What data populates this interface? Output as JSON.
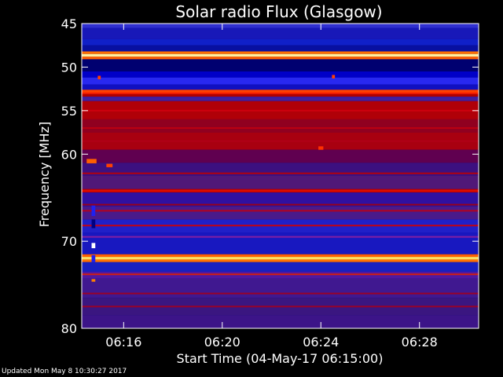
{
  "chart_data": {
    "type": "heatmap",
    "title": "Solar radio Flux (Glasgow)",
    "xlabel": "Start Time (04-May-17 06:15:00)",
    "ylabel": "Frequency [MHz]",
    "x_unit": "minutes after 06:15",
    "xlim": [
      -0.7,
      15.4
    ],
    "ylim": [
      80,
      45
    ],
    "x_ticks": [
      {
        "value": 1,
        "label": "06:16"
      },
      {
        "value": 5,
        "label": "06:20"
      },
      {
        "value": 9,
        "label": "06:24"
      },
      {
        "value": 13,
        "label": "06:28"
      }
    ],
    "y_ticks": [
      {
        "value": 45,
        "label": "45"
      },
      {
        "value": 50,
        "label": "50"
      },
      {
        "value": 55,
        "label": "55"
      },
      {
        "value": 60,
        "label": "60"
      },
      {
        "value": 70,
        "label": "70"
      },
      {
        "value": 80,
        "label": "80"
      }
    ],
    "colors": {
      "background": "#000000",
      "low": "#000078",
      "blue": "#2020e0",
      "purple": "#5018a0",
      "red": "#b00000",
      "orange": "#ff6000",
      "yellow": "#ffff60",
      "white": "#ffffff"
    },
    "bands": [
      {
        "f0": 45.0,
        "f1": 45.5,
        "color": "#3030d0"
      },
      {
        "f0": 45.5,
        "f1": 46.8,
        "color": "#1818b8"
      },
      {
        "f0": 46.8,
        "f1": 47.5,
        "color": "#1020c8"
      },
      {
        "f0": 47.5,
        "f1": 48.2,
        "color": "#0810a0"
      },
      {
        "f0": 48.2,
        "f1": 48.5,
        "color": "#ff7000"
      },
      {
        "f0": 48.5,
        "f1": 48.8,
        "color": "#fff0a0"
      },
      {
        "f0": 48.8,
        "f1": 49.1,
        "color": "#ff6000"
      },
      {
        "f0": 49.1,
        "f1": 50.5,
        "color": "#000070"
      },
      {
        "f0": 50.5,
        "f1": 51.2,
        "color": "#0000c8"
      },
      {
        "f0": 51.2,
        "f1": 52.0,
        "color": "#2828f0"
      },
      {
        "f0": 52.0,
        "f1": 52.6,
        "color": "#1010c0"
      },
      {
        "f0": 52.6,
        "f1": 53.0,
        "color": "#ff4000"
      },
      {
        "f0": 53.0,
        "f1": 53.4,
        "color": "#b00000"
      },
      {
        "f0": 53.4,
        "f1": 53.9,
        "color": "#4020a0"
      },
      {
        "f0": 53.9,
        "f1": 56.0,
        "color": "#b00008"
      },
      {
        "f0": 56.0,
        "f1": 57.5,
        "color": "#900020"
      },
      {
        "f0": 57.5,
        "f1": 59.5,
        "color": "#a80010"
      },
      {
        "f0": 59.5,
        "f1": 61.0,
        "color": "#600050"
      },
      {
        "f0": 61.0,
        "f1": 62.5,
        "color": "#3c1080"
      },
      {
        "f0": 62.5,
        "f1": 64.0,
        "color": "#501878"
      },
      {
        "f0": 64.0,
        "f1": 64.4,
        "color": "#c00000"
      },
      {
        "f0": 64.4,
        "f1": 66.0,
        "color": "#3010a0"
      },
      {
        "f0": 66.0,
        "f1": 67.5,
        "color": "#4a1a8a"
      },
      {
        "f0": 67.5,
        "f1": 69.0,
        "color": "#2020c8"
      },
      {
        "f0": 69.0,
        "f1": 71.5,
        "color": "#1818c0"
      },
      {
        "f0": 71.5,
        "f1": 71.8,
        "color": "#ff6000"
      },
      {
        "f0": 71.8,
        "f1": 72.1,
        "color": "#ffe060"
      },
      {
        "f0": 72.1,
        "f1": 72.4,
        "color": "#ff7000"
      },
      {
        "f0": 72.4,
        "f1": 73.5,
        "color": "#1820c0"
      },
      {
        "f0": 73.5,
        "f1": 74.3,
        "color": "#5018a0"
      },
      {
        "f0": 74.3,
        "f1": 76.5,
        "color": "#401890"
      },
      {
        "f0": 76.5,
        "f1": 78.5,
        "color": "#3a1680"
      },
      {
        "f0": 78.5,
        "f1": 80.0,
        "color": "#3c1488"
      }
    ],
    "lines": [
      {
        "freq": 53.0,
        "color": "#ff2000"
      },
      {
        "freq": 55.0,
        "color": "#d00010"
      },
      {
        "freq": 57.0,
        "color": "#c00010"
      },
      {
        "freq": 58.5,
        "color": "#b00018"
      },
      {
        "freq": 62.2,
        "color": "#c00000"
      },
      {
        "freq": 64.2,
        "color": "#e01000"
      },
      {
        "freq": 65.8,
        "color": "#a00010"
      },
      {
        "freq": 66.5,
        "color": "#c00010"
      },
      {
        "freq": 68.2,
        "color": "#d00000"
      },
      {
        "freq": 69.5,
        "color": "#9020a0"
      },
      {
        "freq": 73.8,
        "color": "#e02000"
      },
      {
        "freq": 76.0,
        "color": "#a00020"
      },
      {
        "freq": 77.5,
        "color": "#a00020"
      }
    ],
    "spots": [
      {
        "t": -0.3,
        "freq": 66.5,
        "w": 0.15,
        "h": 1.2,
        "color": "#2020f0"
      },
      {
        "t": -0.3,
        "freq": 68.0,
        "w": 0.15,
        "h": 1.0,
        "color": "#000080"
      },
      {
        "t": -0.3,
        "freq": 70.5,
        "w": 0.15,
        "h": 0.6,
        "color": "#ffffff"
      },
      {
        "t": -0.3,
        "freq": 72.0,
        "w": 0.15,
        "h": 0.8,
        "color": "#2020f0"
      },
      {
        "t": -0.3,
        "freq": 74.5,
        "w": 0.15,
        "h": 0.3,
        "color": "#ff8000"
      },
      {
        "t": -0.05,
        "freq": 51.2,
        "w": 0.12,
        "h": 0.4,
        "color": "#ff4000"
      },
      {
        "t": 9.45,
        "freq": 51.1,
        "w": 0.12,
        "h": 0.4,
        "color": "#ff4000"
      },
      {
        "t": 8.9,
        "freq": 59.3,
        "w": 0.2,
        "h": 0.4,
        "color": "#ff3000"
      },
      {
        "t": -0.5,
        "freq": 60.8,
        "w": 0.4,
        "h": 0.5,
        "color": "#ff6000"
      },
      {
        "t": 0.3,
        "freq": 61.3,
        "w": 0.25,
        "h": 0.4,
        "color": "#ff4000"
      }
    ]
  },
  "footer_text": "Updated Mon May  8 10:30:27 2017"
}
